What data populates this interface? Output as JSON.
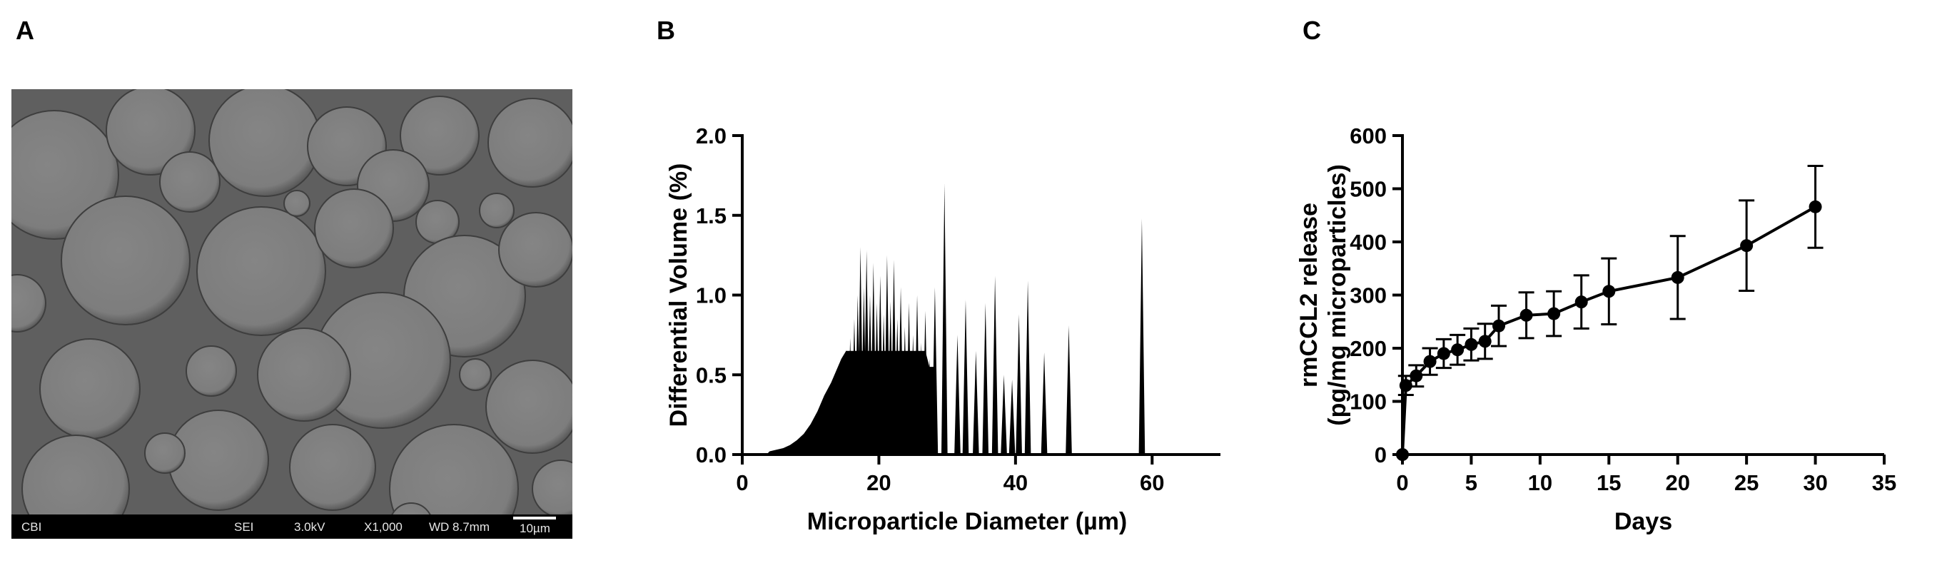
{
  "panels": [
    {
      "label": "A"
    },
    {
      "label": "B"
    },
    {
      "label": "C"
    }
  ],
  "sem": {
    "label_left": "CBI",
    "mode": "SEI",
    "voltage": "3.0kV",
    "magnification": "X1,000",
    "working_distance": "WD 8.7mm",
    "scale_bar": "10µm",
    "colors": {
      "background": "#5f5f5f",
      "particle": "#7d7d7d",
      "bar": "#000000"
    },
    "particles": [
      {
        "cx": 60,
        "cy": 120,
        "r": 90
      },
      {
        "cx": 195,
        "cy": 58,
        "r": 62
      },
      {
        "cx": 355,
        "cy": 72,
        "r": 78
      },
      {
        "cx": 470,
        "cy": 80,
        "r": 55
      },
      {
        "cx": 600,
        "cy": 65,
        "r": 55
      },
      {
        "cx": 730,
        "cy": 75,
        "r": 62
      },
      {
        "cx": 250,
        "cy": 130,
        "r": 42
      },
      {
        "cx": 535,
        "cy": 135,
        "r": 50
      },
      {
        "cx": 680,
        "cy": 170,
        "r": 24
      },
      {
        "cx": 597,
        "cy": 186,
        "r": 30
      },
      {
        "cx": 160,
        "cy": 240,
        "r": 90
      },
      {
        "cx": 350,
        "cy": 255,
        "r": 90
      },
      {
        "cx": 635,
        "cy": 290,
        "r": 85
      },
      {
        "cx": 735,
        "cy": 225,
        "r": 52
      },
      {
        "cx": 480,
        "cy": 195,
        "r": 55
      },
      {
        "cx": 520,
        "cy": 380,
        "r": 95
      },
      {
        "cx": 110,
        "cy": 420,
        "r": 70
      },
      {
        "cx": 280,
        "cy": 395,
        "r": 35
      },
      {
        "cx": 410,
        "cy": 400,
        "r": 65
      },
      {
        "cx": 290,
        "cy": 520,
        "r": 70
      },
      {
        "cx": 90,
        "cy": 560,
        "r": 75
      },
      {
        "cx": 450,
        "cy": 530,
        "r": 60
      },
      {
        "cx": 620,
        "cy": 560,
        "r": 90
      },
      {
        "cx": 730,
        "cy": 445,
        "r": 65
      },
      {
        "cx": 770,
        "cy": 560,
        "r": 40
      },
      {
        "cx": 8,
        "cy": 300,
        "r": 40
      },
      {
        "cx": 215,
        "cy": 510,
        "r": 28
      },
      {
        "cx": 560,
        "cy": 610,
        "r": 30
      },
      {
        "cx": 400,
        "cy": 160,
        "r": 18
      },
      {
        "cx": 650,
        "cy": 400,
        "r": 22
      }
    ]
  },
  "chart_data": [
    {
      "type": "area",
      "xlabel": "Microparticle Diameter (µm)",
      "ylabel": "Differential Volume (%)",
      "xlim": [
        0,
        70
      ],
      "ylim": [
        0,
        2.0
      ],
      "xticks": [
        "0",
        "20",
        "40",
        "60"
      ],
      "yticks": [
        "0.0",
        "0.5",
        "1.0",
        "1.5",
        "2.0"
      ],
      "fill": "#000000",
      "peaks": [
        [
          4.0,
          0.02
        ],
        [
          5.0,
          0.03
        ],
        [
          6.0,
          0.04
        ],
        [
          7.0,
          0.06
        ],
        [
          8.0,
          0.09
        ],
        [
          9.0,
          0.13
        ],
        [
          10.0,
          0.19
        ],
        [
          11.0,
          0.27
        ],
        [
          12.0,
          0.37
        ],
        [
          13.0,
          0.45
        ],
        [
          13.8,
          0.53
        ],
        [
          14.5,
          0.6
        ],
        [
          15.2,
          0.66
        ],
        [
          15.8,
          0.73
        ],
        [
          16.4,
          0.85
        ],
        [
          16.9,
          1.0
        ],
        [
          17.3,
          1.3
        ],
        [
          17.8,
          1.05
        ],
        [
          18.2,
          1.28
        ],
        [
          18.7,
          1.0
        ],
        [
          19.2,
          1.2
        ],
        [
          19.7,
          0.95
        ],
        [
          20.2,
          1.12
        ],
        [
          20.7,
          0.88
        ],
        [
          21.2,
          1.25
        ],
        [
          21.7,
          0.96
        ],
        [
          22.2,
          1.22
        ],
        [
          22.7,
          0.85
        ],
        [
          23.2,
          1.05
        ],
        [
          23.8,
          0.8
        ],
        [
          24.4,
          0.95
        ],
        [
          25.0,
          0.75
        ],
        [
          25.6,
          1.0
        ],
        [
          26.2,
          0.7
        ],
        [
          26.8,
          0.9
        ],
        [
          27.4,
          0.6
        ],
        [
          28.2,
          1.05
        ],
        [
          29.6,
          1.7
        ],
        [
          31.5,
          0.75
        ],
        [
          32.7,
          0.97
        ],
        [
          34.2,
          0.65
        ],
        [
          35.6,
          0.95
        ],
        [
          37.0,
          1.12
        ],
        [
          38.3,
          0.5
        ],
        [
          39.5,
          0.47
        ],
        [
          40.5,
          0.88
        ],
        [
          41.8,
          1.09
        ],
        [
          44.2,
          0.64
        ],
        [
          47.8,
          0.81
        ],
        [
          58.5,
          1.48
        ]
      ]
    },
    {
      "type": "line",
      "xlabel": "Days",
      "ylabel_line1": "rmCCL2 release",
      "ylabel_line2": "(pg/mg microparticles)",
      "xlim": [
        0,
        35
      ],
      "ylim": [
        0,
        600
      ],
      "xticks": [
        "0",
        "5",
        "10",
        "15",
        "20",
        "25",
        "30",
        "35"
      ],
      "yticks": [
        "0",
        "100",
        "200",
        "300",
        "400",
        "500",
        "600"
      ],
      "color": "#000000",
      "x": [
        0,
        0.25,
        1,
        2,
        3,
        4,
        5,
        6,
        7,
        9,
        11,
        13,
        15,
        20,
        25,
        30
      ],
      "y": [
        0,
        130,
        148,
        175,
        190,
        197,
        207,
        213,
        242,
        262,
        265,
        287,
        307,
        333,
        393,
        466
      ],
      "error": [
        0,
        18,
        20,
        25,
        27,
        28,
        30,
        33,
        38,
        43,
        42,
        50,
        62,
        78,
        85,
        77
      ]
    }
  ]
}
